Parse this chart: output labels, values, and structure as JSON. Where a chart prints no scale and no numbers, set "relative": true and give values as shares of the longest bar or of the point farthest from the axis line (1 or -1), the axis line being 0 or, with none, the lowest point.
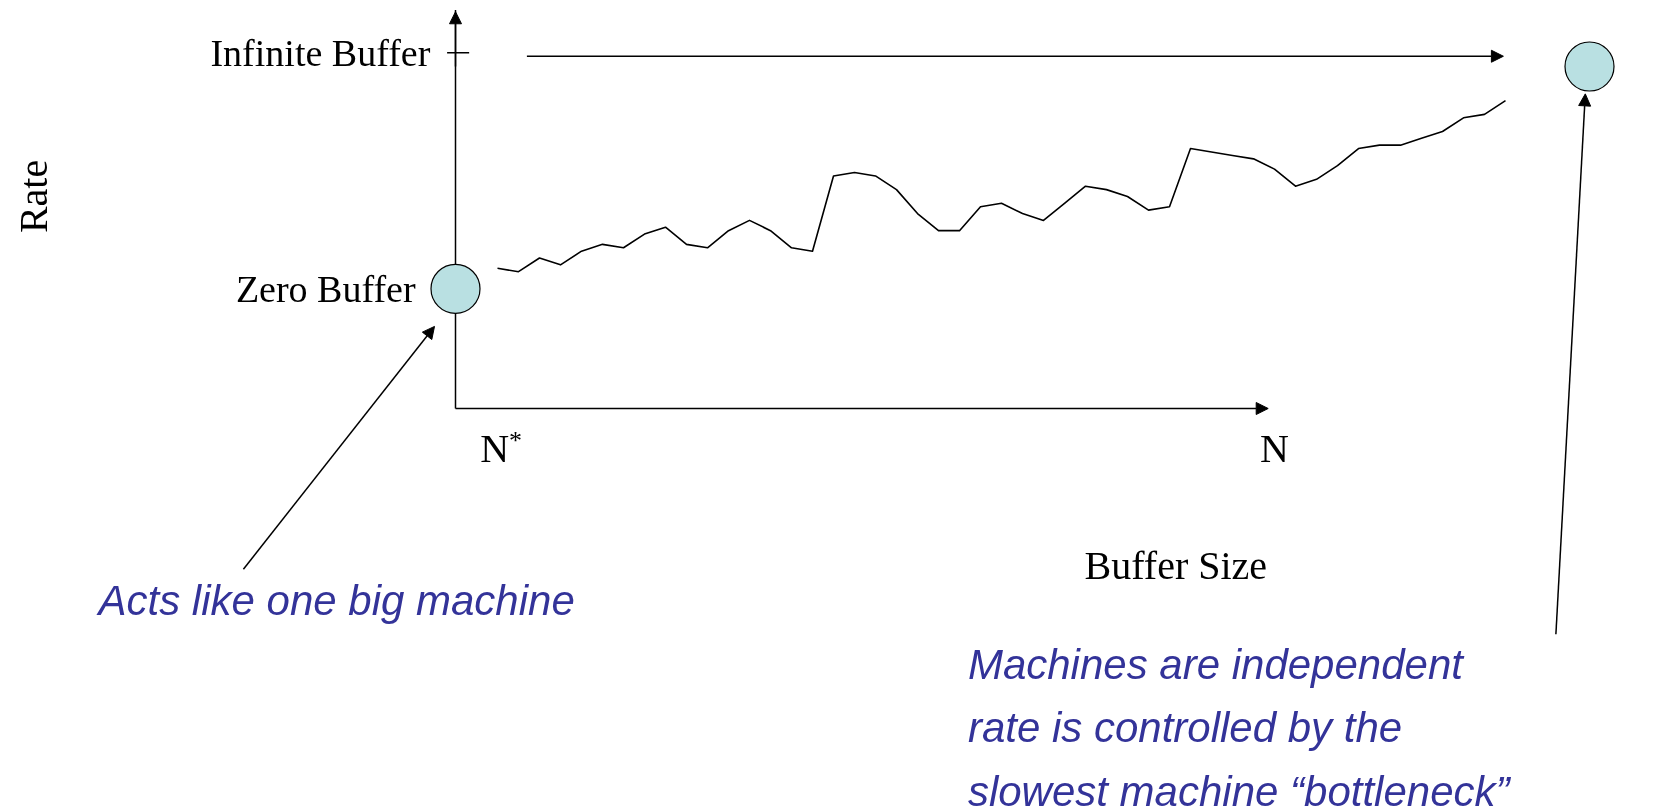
{
  "chart_data": {
    "type": "line",
    "relative": true,
    "xlabel": "Buffer Size",
    "categories": [
      null,
      null,
      "N$^{*}$",
      null,
      null,
      null,
      null,
      null,
      null,
      null,
      null,
      null,
      null,
      null,
      null,
      null,
      null,
      null,
      null,
      null,
      null,
      null,
      null,
      null,
      null,
      null,
      null,
      null,
      null,
      null,
      null,
      null,
      null,
      null,
      null,
      null,
      null,
      null,
      null,
      "N",
      null,
      null,
      null,
      null,
      null,
      null,
      null,
      null,
      null,
      null,
      null,
      null,
      null,
      null,
      null
    ],
    "series": [
      {
        "color": "#000000",
        "values": [
          null,
          null,
          0.41,
          0.4,
          0.44,
          0.42,
          0.46,
          0.48,
          0.47,
          0.51,
          0.53,
          0.48,
          0.47,
          0.52,
          0.55,
          0.52,
          0.47,
          0.46,
          0.68,
          0.69,
          0.68,
          0.64,
          0.57,
          0.52,
          0.52,
          0.59,
          0.6,
          0.57,
          0.55,
          0.6,
          0.65,
          0.64,
          0.62,
          0.58,
          0.59,
          0.76,
          0.75,
          0.74,
          0.73,
          0.7,
          0.65,
          0.67,
          0.71,
          0.76,
          0.77,
          0.77,
          0.79,
          0.81,
          0.85,
          0.86,
          0.9,
          null,
          null,
          null,
          null
        ]
      },
      {
        "type": "scatter",
        "color": "#b9e0e2",
        "marker": "circle",
        "values": [
          0.35,
          null,
          null,
          null,
          null,
          null,
          null,
          null,
          null,
          null,
          null,
          null,
          null,
          null,
          null,
          null,
          null,
          null,
          null,
          null,
          null,
          null,
          null,
          null,
          null,
          null,
          null,
          null,
          null,
          null,
          null,
          null,
          null,
          null,
          null,
          null,
          null,
          null,
          null,
          null,
          null,
          null,
          null,
          null,
          null,
          null,
          null,
          null,
          null,
          null,
          null,
          null,
          null,
          null,
          1.0
        ]
      }
    ],
    "annotations": [
      "Rate",
      "Zero Buffer",
      "Infinite Buffer",
      "Acts like one big machine",
      "Machines are independent\nrate is controlled by the\nslowest machine “bottleneck”"
    ]
  }
}
